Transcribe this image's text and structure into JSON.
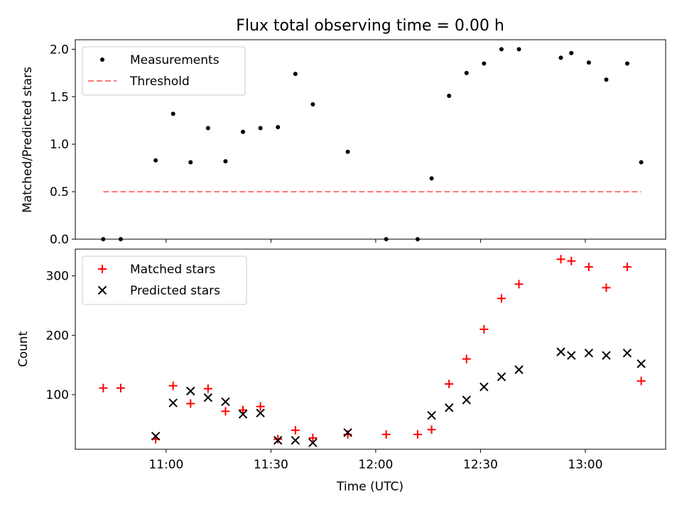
{
  "chart_data": [
    {
      "type": "scatter",
      "title": "Flux total observing time = 0.00 h",
      "xlabel": "",
      "ylabel": "Matched/Predicted stars",
      "xlim": [
        "10:34",
        "13:23"
      ],
      "ylim": [
        0,
        2.1
      ],
      "yticks": [
        0.0,
        0.5,
        1.0,
        1.5,
        2.0
      ],
      "ytick_labels": [
        "0.0",
        "0.5",
        "1.0",
        "1.5",
        "2.0"
      ],
      "xticks": [
        "11:00",
        "11:30",
        "12:00",
        "12:30",
        "13:00"
      ],
      "grid": false,
      "legend_position": "top-left",
      "series": [
        {
          "name": "Measurements",
          "marker": "dot",
          "color": "#000000",
          "x": [
            "10:42",
            "10:47",
            "10:57",
            "11:02",
            "11:07",
            "11:12",
            "11:17",
            "11:22",
            "11:27",
            "11:32",
            "11:37",
            "11:42",
            "11:52",
            "12:03",
            "12:12",
            "12:16",
            "12:21",
            "12:26",
            "12:31",
            "12:36",
            "12:41",
            "12:53",
            "12:56",
            "13:01",
            "13:06",
            "13:12",
            "13:16"
          ],
          "y": [
            0.0,
            0.0,
            0.83,
            1.32,
            0.81,
            1.17,
            0.82,
            1.13,
            1.17,
            1.18,
            1.74,
            1.42,
            0.92,
            0.0,
            0.0,
            0.64,
            1.51,
            1.75,
            1.85,
            2.0,
            2.0,
            1.91,
            1.96,
            1.86,
            1.68,
            1.85,
            0.81
          ]
        },
        {
          "name": "Threshold",
          "marker": "dashed-line",
          "color": "#ff7f7f",
          "x": [
            "10:42",
            "13:16"
          ],
          "y": [
            0.5,
            0.5
          ]
        }
      ]
    },
    {
      "type": "scatter",
      "title": "",
      "xlabel": "Time (UTC)",
      "ylabel": "Count",
      "xlim": [
        "10:34",
        "13:23"
      ],
      "ylim": [
        8,
        345
      ],
      "yticks": [
        100,
        200,
        300
      ],
      "ytick_labels": [
        "100",
        "200",
        "300"
      ],
      "xticks": [
        "11:00",
        "11:30",
        "12:00",
        "12:30",
        "13:00"
      ],
      "xtick_labels": [
        "11:00",
        "11:30",
        "12:00",
        "12:30",
        "13:00"
      ],
      "grid": false,
      "legend_position": "top-left",
      "series": [
        {
          "name": "Matched stars",
          "marker": "plus",
          "color": "#ff0000",
          "x": [
            "10:42",
            "10:47",
            "10:57",
            "11:02",
            "11:07",
            "11:12",
            "11:17",
            "11:22",
            "11:27",
            "11:32",
            "11:37",
            "11:42",
            "11:52",
            "12:03",
            "12:12",
            "12:16",
            "12:21",
            "12:26",
            "12:31",
            "12:36",
            "12:41",
            "12:53",
            "12:56",
            "13:01",
            "13:06",
            "13:12",
            "13:16"
          ],
          "y": [
            111,
            111,
            25,
            115,
            85,
            110,
            72,
            74,
            80,
            25,
            40,
            27,
            33,
            33,
            33,
            41,
            118,
            160,
            210,
            262,
            286,
            328,
            325,
            315,
            280,
            315,
            123
          ]
        },
        {
          "name": "Predicted stars",
          "marker": "x",
          "color": "#000000",
          "x": [
            "10:57",
            "11:02",
            "11:07",
            "11:12",
            "11:17",
            "11:22",
            "11:27",
            "11:32",
            "11:37",
            "11:42",
            "11:52",
            "12:16",
            "12:21",
            "12:26",
            "12:31",
            "12:36",
            "12:41",
            "12:53",
            "12:56",
            "13:01",
            "13:06",
            "13:12",
            "13:16"
          ],
          "y": [
            30,
            86,
            106,
            95,
            88,
            67,
            69,
            23,
            23,
            19,
            36,
            65,
            78,
            91,
            113,
            130,
            142,
            172,
            166,
            170,
            166,
            170,
            152
          ]
        }
      ]
    }
  ]
}
